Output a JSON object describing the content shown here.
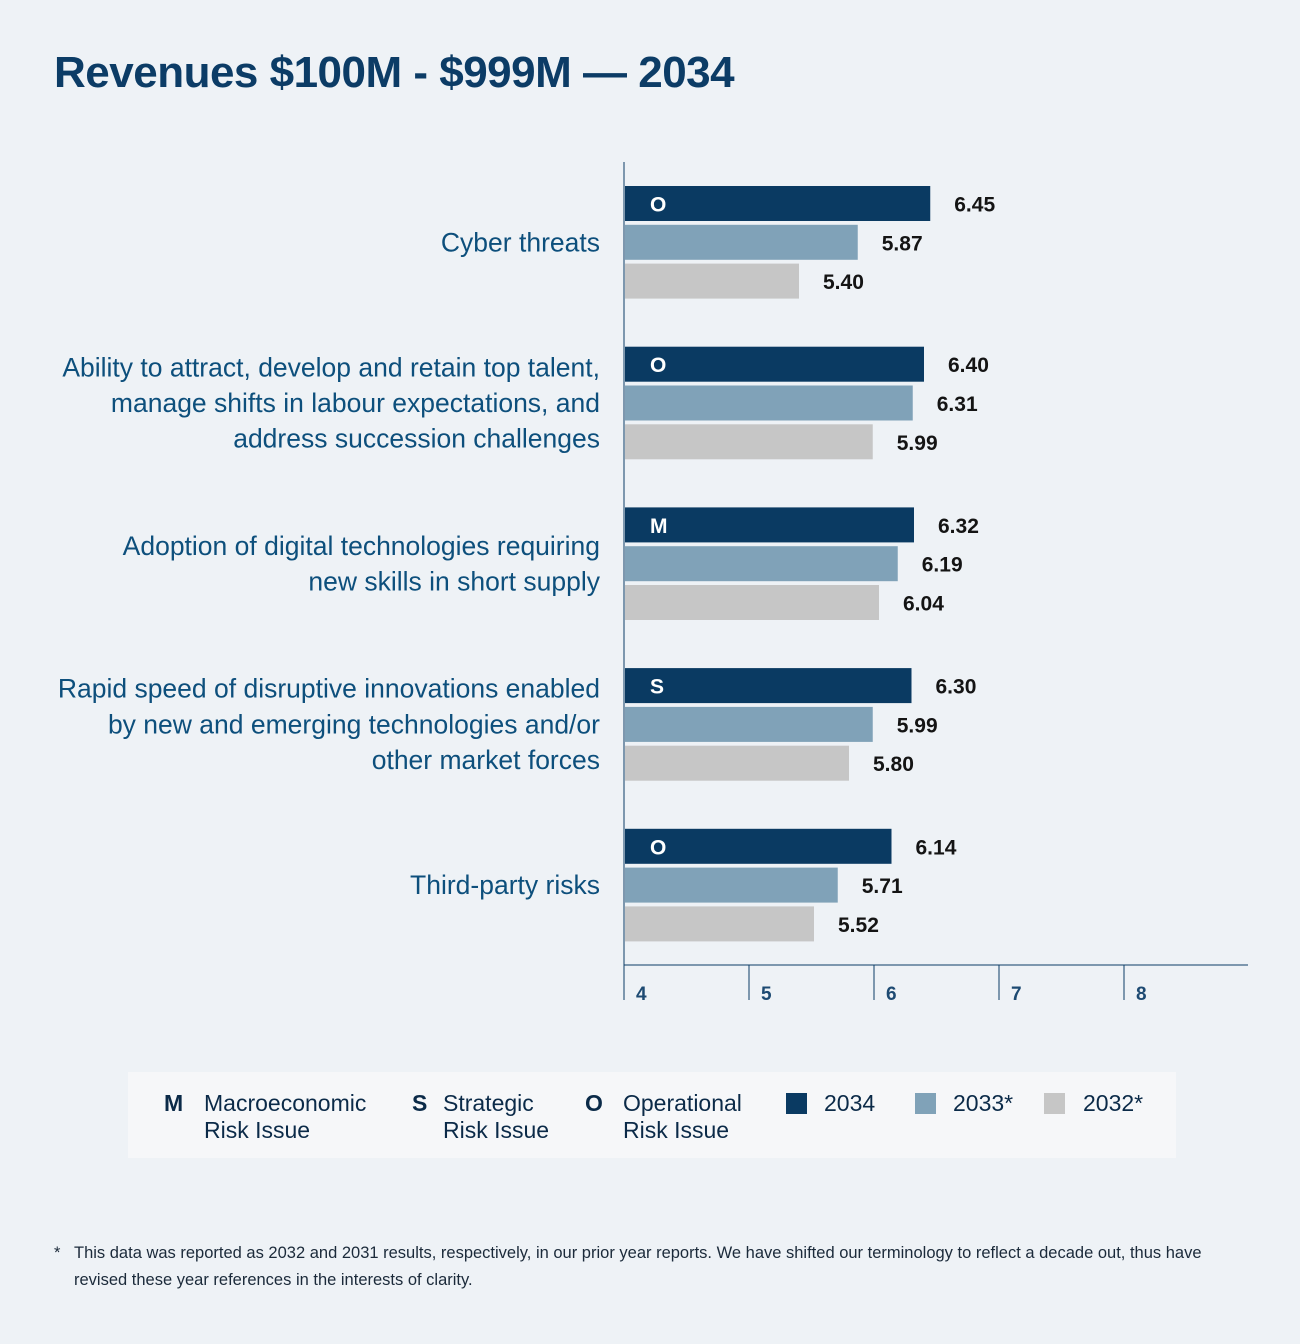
{
  "title": "Revenues $100M - $999M — 2034",
  "colors": {
    "y2034": "#0a3a62",
    "y2033": "#80a2b8",
    "y2032": "#c6c6c6",
    "label": "#0d4f7c",
    "axis": "#0c3c66"
  },
  "chart_data": {
    "type": "bar",
    "orientation": "horizontal",
    "title": "Revenues $100M - $999M — 2034",
    "categories": [
      "Cyber threats",
      "Ability to attract, develop and retain top talent, manage shifts in labour expectations, and address succession challenges",
      "Adoption of digital technologies requiring new skills in short supply",
      "Rapid speed of disruptive innovations enabled by new and emerging technologies and/or other market forces",
      "Third-party risks"
    ],
    "category_lines": [
      [
        "Cyber threats"
      ],
      [
        "Ability to attract, develop and retain top talent,",
        "manage shifts in labour expectations, and",
        "address succession challenges"
      ],
      [
        "Adoption of digital technologies requiring",
        "new skills in short supply"
      ],
      [
        "Rapid speed of disruptive innovations enabled",
        "by new and emerging technologies and/or",
        "other market forces"
      ],
      [
        "Third-party risks"
      ]
    ],
    "risk_type": [
      "O",
      "O",
      "M",
      "S",
      "O"
    ],
    "series": [
      {
        "name": "2034",
        "values": [
          6.45,
          6.4,
          6.32,
          6.3,
          6.14
        ]
      },
      {
        "name": "2033*",
        "values": [
          5.87,
          6.31,
          6.19,
          5.99,
          5.71
        ]
      },
      {
        "name": "2032*",
        "values": [
          5.4,
          5.99,
          6.04,
          5.8,
          5.52
        ]
      }
    ],
    "value_labels": [
      [
        "6.45",
        "6.40",
        "6.32",
        "6.30",
        "6.14"
      ],
      [
        "5.87",
        "6.31",
        "6.19",
        "5.99",
        "5.71"
      ],
      [
        "5.40",
        "5.99",
        "6.04",
        "5.80",
        "5.52"
      ]
    ],
    "xlim": [
      4,
      9
    ],
    "xticks": [
      "4",
      "5",
      "6",
      "7",
      "8"
    ],
    "grid": false,
    "legend_position": "bottom"
  },
  "legend": {
    "risk_types": [
      {
        "letter": "M",
        "line1": "Macroeconomic",
        "line2": "Risk Issue"
      },
      {
        "letter": "S",
        "line1": "Strategic",
        "line2": "Risk Issue"
      },
      {
        "letter": "O",
        "line1": "Operational",
        "line2": "Risk Issue"
      }
    ],
    "years": [
      "2034",
      "2033*",
      "2032*"
    ]
  },
  "footnote": {
    "marker": "*",
    "text": "This data was reported as 2032 and 2031 results, respectively, in our prior year reports. We have shifted our terminology to reflect a decade out, thus have revised these year references in the interests of clarity."
  }
}
